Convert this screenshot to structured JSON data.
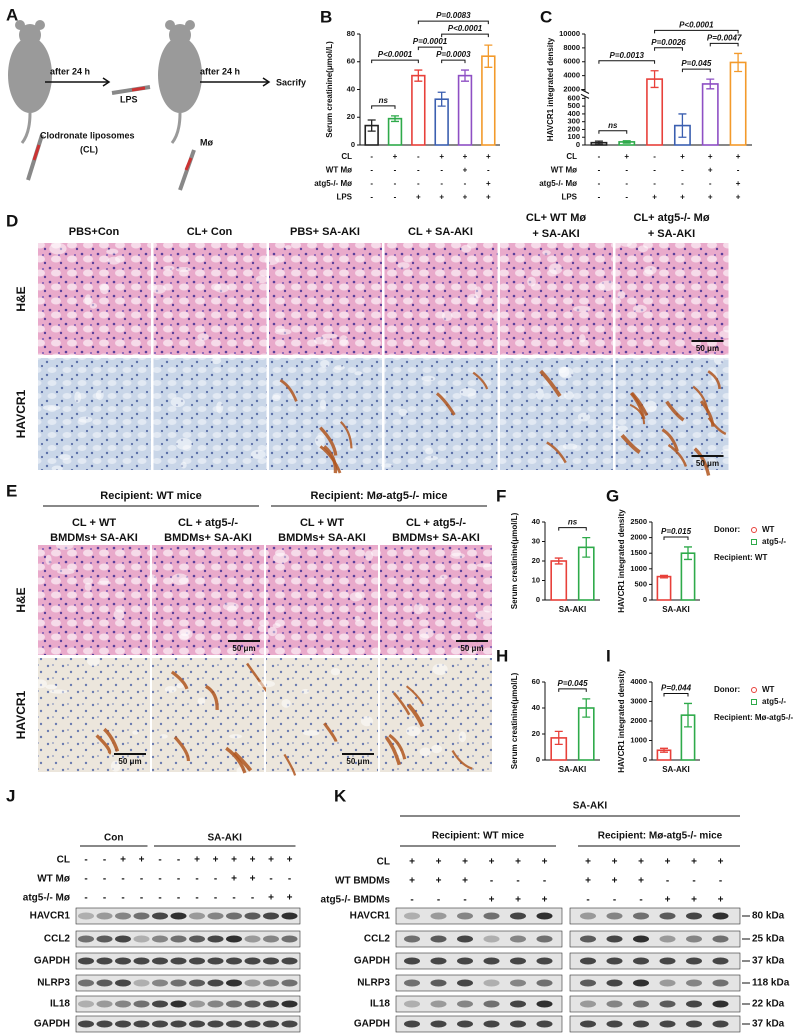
{
  "panel_a": {
    "label": "A",
    "step_1": "after 24 h",
    "step_2": "after 24 h",
    "injection": "LPS",
    "end": "Sacrify",
    "treatment": [
      "Clodronate liposomes",
      "(CL)"
    ],
    "cells": "Mø"
  },
  "chart_data": [
    {
      "panel": "B",
      "type": "bar",
      "ylabel": "Serum creatinine(μmol/L)",
      "categories": [
        null,
        null,
        null,
        null,
        null,
        null
      ],
      "values": [
        14,
        19,
        50,
        33,
        50,
        64
      ],
      "errors": [
        4,
        2,
        4,
        5,
        4,
        8
      ],
      "colors": [
        "#222222",
        "#2eaa4a",
        "#e8403a",
        "#3b5fb0",
        "#8e4fc4",
        "#f39a2b"
      ],
      "ylim": [
        0,
        80
      ],
      "yticks": [
        0,
        20,
        40,
        60,
        80
      ],
      "comparisons": [
        {
          "groups": [
            0,
            1
          ],
          "label": "ns"
        },
        {
          "groups": [
            0,
            2
          ],
          "label": "P<0.0001"
        },
        {
          "groups": [
            2,
            3
          ],
          "label": "P=0.0001"
        },
        {
          "groups": [
            3,
            4
          ],
          "label": "P=0.0003"
        },
        {
          "groups": [
            3,
            5
          ],
          "label": "P<0.0001"
        },
        {
          "groups": [
            2,
            5
          ],
          "label": "P=0.0083"
        }
      ],
      "conditions": {
        "labels": [
          "CL",
          "WT Mø",
          "atg5-/- Mø",
          "LPS"
        ],
        "rows": [
          [
            "-",
            "+",
            "-",
            "+",
            "+",
            "+"
          ],
          [
            "-",
            "-",
            "-",
            "-",
            "+",
            "-"
          ],
          [
            "-",
            "-",
            "-",
            "-",
            "-",
            "+"
          ],
          [
            "-",
            "-",
            "+",
            "+",
            "+",
            "+"
          ]
        ]
      }
    },
    {
      "panel": "C",
      "type": "bar",
      "ylabel": "HAVCR1 integrated density",
      "categories": [
        null,
        null,
        null,
        null,
        null,
        null
      ],
      "values": [
        30,
        40,
        3500,
        250,
        2800,
        5900
      ],
      "errors": [
        20,
        15,
        1200,
        150,
        700,
        1300
      ],
      "colors": [
        "#222222",
        "#2eaa4a",
        "#e8403a",
        "#3b5fb0",
        "#8e4fc4",
        "#f39a2b"
      ],
      "ylim": [
        0,
        10000
      ],
      "ybreak": [
        600,
        2000
      ],
      "yticks": [
        0,
        100,
        200,
        300,
        400,
        500,
        600,
        2000,
        4000,
        6000,
        8000,
        10000
      ],
      "comparisons": [
        {
          "groups": [
            0,
            1
          ],
          "label": "ns"
        },
        {
          "groups": [
            0,
            2
          ],
          "label": "P=0.0013"
        },
        {
          "groups": [
            2,
            3
          ],
          "label": "P=0.0026"
        },
        {
          "groups": [
            3,
            4
          ],
          "label": "P=0.045"
        },
        {
          "groups": [
            4,
            5
          ],
          "label": "P=0.0047"
        },
        {
          "groups": [
            2,
            5
          ],
          "label": "P<0.0001"
        }
      ],
      "conditions": {
        "labels": [
          "CL",
          "WT Mø",
          "atg5-/- Mø",
          "LPS"
        ],
        "rows": [
          [
            "-",
            "+",
            "-",
            "+",
            "+",
            "+"
          ],
          [
            "-",
            "-",
            "-",
            "-",
            "+",
            "-"
          ],
          [
            "-",
            "-",
            "-",
            "-",
            "-",
            "+"
          ],
          [
            "-",
            "-",
            "+",
            "+",
            "+",
            "+"
          ]
        ]
      }
    },
    {
      "panel": "F",
      "type": "bar",
      "ylabel": "Serum creatinine(μmol/L)",
      "xlabel": "SA-AKI",
      "values": [
        20,
        27
      ],
      "errors": [
        1.5,
        5
      ],
      "colors": [
        "#e8403a",
        "#2eaa4a"
      ],
      "ylim": [
        0,
        40
      ],
      "yticks": [
        0,
        10,
        20,
        30,
        40
      ],
      "comparisons": [
        {
          "groups": [
            0,
            1
          ],
          "label": "ns"
        }
      ]
    },
    {
      "panel": "G",
      "type": "bar",
      "ylabel": "HAVCR1 integrated density",
      "xlabel": "SA-AKI",
      "values": [
        750,
        1500
      ],
      "errors": [
        40,
        200
      ],
      "colors": [
        "#e8403a",
        "#2eaa4a"
      ],
      "ylim": [
        0,
        2500
      ],
      "yticks": [
        0,
        500,
        1000,
        1500,
        2000,
        2500
      ],
      "comparisons": [
        {
          "groups": [
            0,
            1
          ],
          "label": "P=0.015"
        }
      ],
      "legend": {
        "title": "Donor:",
        "entries": [
          "WT",
          "atg5-/-"
        ],
        "recipient": "Recipient:  WT"
      }
    },
    {
      "panel": "H",
      "type": "bar",
      "ylabel": "Serum creatinine(μmol/L)",
      "xlabel": "SA-AKI",
      "values": [
        17,
        40
      ],
      "errors": [
        5,
        7
      ],
      "colors": [
        "#e8403a",
        "#2eaa4a"
      ],
      "ylim": [
        0,
        60
      ],
      "yticks": [
        0,
        20,
        40,
        60
      ],
      "comparisons": [
        {
          "groups": [
            0,
            1
          ],
          "label": "P=0.045"
        }
      ]
    },
    {
      "panel": "I",
      "type": "bar",
      "ylabel": "HAVCR1 integrated density",
      "xlabel": "SA-AKI",
      "values": [
        500,
        2300
      ],
      "errors": [
        100,
        600
      ],
      "colors": [
        "#e8403a",
        "#2eaa4a"
      ],
      "ylim": [
        0,
        4000
      ],
      "yticks": [
        0,
        1000,
        2000,
        3000,
        4000
      ],
      "comparisons": [
        {
          "groups": [
            0,
            1
          ],
          "label": "P=0.044"
        }
      ],
      "legend": {
        "title": "Donor:",
        "entries": [
          "WT",
          "atg5-/-"
        ],
        "recipient": "Recipient:  Mø-atg5-/-"
      }
    }
  ],
  "panel_d": {
    "label": "D",
    "columns": [
      [
        "PBS+Con"
      ],
      [
        "CL+ Con"
      ],
      [
        "PBS+ SA-AKI"
      ],
      [
        "CL + SA-AKI"
      ],
      [
        "CL+ WT Mø",
        "+ SA-AKI"
      ],
      [
        "CL+ atg5-/- Mø",
        "+ SA-AKI"
      ]
    ],
    "rows": [
      "H&E",
      "HAVCR1"
    ],
    "scale_bars": [
      "50 μm",
      "50 μm"
    ]
  },
  "panel_e": {
    "label": "E",
    "groups": [
      "Recipient: WT mice",
      "Recipient: Mø-atg5-/- mice"
    ],
    "columns": [
      [
        "CL + WT",
        "BMDMs+ SA-AKI"
      ],
      [
        "CL + atg5-/-",
        "BMDMs+ SA-AKI"
      ],
      [
        "CL + WT",
        "BMDMs+ SA-AKI"
      ],
      [
        "CL + atg5-/-",
        "BMDMs+ SA-AKI"
      ]
    ],
    "rows": [
      "H&E",
      "HAVCR1"
    ],
    "scale_bars": [
      "50 μm",
      "50 μm",
      "50 μm",
      "50 μm"
    ]
  },
  "panel_j": {
    "label": "J",
    "groups": [
      "Con",
      "SA-AKI"
    ],
    "conditions": {
      "labels": [
        "CL",
        "WT Mø",
        "atg5-/- Mø"
      ],
      "rows": [
        [
          "-",
          "-",
          "+",
          "+",
          "-",
          "-",
          "+",
          "+",
          "+",
          "+",
          "+",
          "+"
        ],
        [
          "-",
          "-",
          "-",
          "-",
          "-",
          "-",
          "-",
          "-",
          "+",
          "+",
          "-",
          "-"
        ],
        [
          "-",
          "-",
          "-",
          "-",
          "-",
          "-",
          "-",
          "-",
          "-",
          "-",
          "+",
          "+"
        ]
      ]
    },
    "bands": [
      "HAVCR1",
      "CCL2",
      "GAPDH",
      "NLRP3",
      "IL18",
      "GAPDH"
    ]
  },
  "panel_k": {
    "label": "K",
    "title": "SA-AKI",
    "groups": [
      "Recipient: WT mice",
      "Recipient: Mø-atg5-/- mice"
    ],
    "conditions": {
      "labels": [
        "CL",
        "WT BMDMs",
        "atg5-/- BMDMs"
      ],
      "rows": [
        [
          "+",
          "+",
          "+",
          "+",
          "+",
          "+",
          "+",
          "+",
          "+",
          "+",
          "+",
          "+"
        ],
        [
          "+",
          "+",
          "+",
          "-",
          "-",
          "-",
          "+",
          "+",
          "+",
          "-",
          "-",
          "-"
        ],
        [
          "-",
          "-",
          "-",
          "+",
          "+",
          "+",
          "-",
          "-",
          "-",
          "+",
          "+",
          "+"
        ]
      ]
    },
    "bands": [
      "HAVCR1",
      "CCL2",
      "GAPDH",
      "NLRP3",
      "IL18",
      "GAPDH"
    ],
    "sizes": [
      "80 kDa",
      "25 kDa",
      "37 kDa",
      "118 kDa",
      "22 kDa",
      "37 kDa"
    ]
  }
}
